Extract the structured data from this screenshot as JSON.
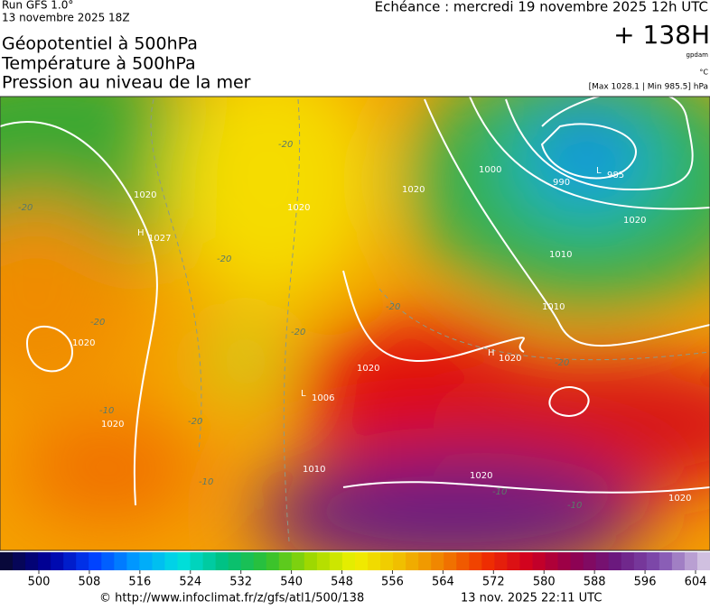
{
  "header": {
    "run": "Run GFS 1.0°",
    "date": "13 novembre 2025 18Z",
    "echeance": "Echéance : mercredi 19 novembre 2025 12h UTC",
    "lead": "+ 138H",
    "unit_gpdam": "gpdam",
    "unit_c": "°C",
    "range": "[Max 1028.1 | Min 985.5] hPa"
  },
  "titles": [
    "Géopotentiel à 500hPa",
    "Température à 500hPa",
    "Pression au niveau de la mer"
  ],
  "map": {
    "centers": [
      {
        "type": "H",
        "value": "1027"
      },
      {
        "type": "L",
        "value": "985"
      },
      {
        "type": "H",
        "value": "1020"
      },
      {
        "type": "L",
        "value": "1006"
      }
    ],
    "isobar_labels": [
      "1020",
      "1000",
      "990",
      "1010",
      "1020",
      "1010",
      "1020",
      "1020",
      "1020",
      "1020",
      "1020",
      "1020",
      "1010",
      "1020"
    ],
    "temp_labels": [
      "-20",
      "-20",
      "-20",
      "-20",
      "-20",
      "-20",
      "-20",
      "-20",
      "-10",
      "-10",
      "-10",
      "-10"
    ]
  },
  "colorbar": {
    "ticks": [
      500,
      508,
      516,
      524,
      532,
      540,
      548,
      556,
      564,
      572,
      580,
      588,
      596,
      604
    ]
  },
  "footer": {
    "url": "© http://www.infoclimat.fr/z/gfs/atl1/500/138",
    "timestamp": "13 nov. 2025 22:11 UTC"
  }
}
